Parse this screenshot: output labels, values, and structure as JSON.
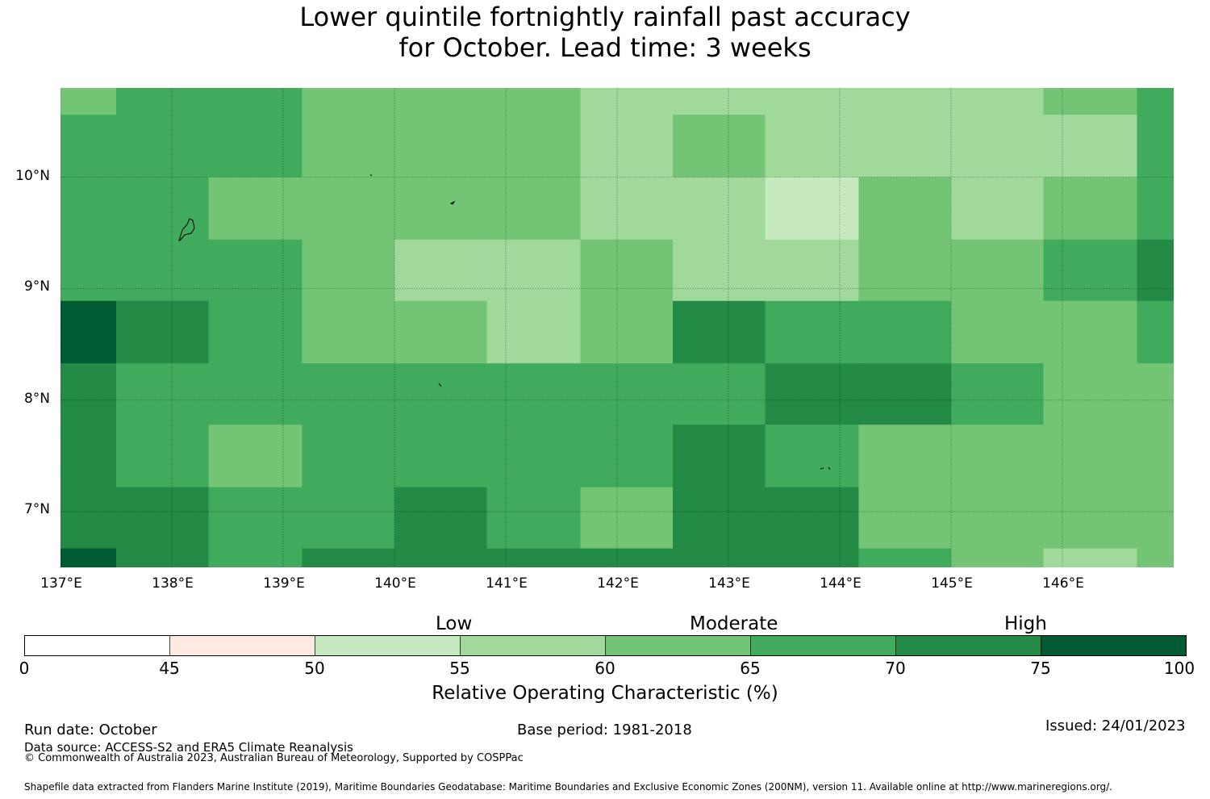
{
  "title": {
    "line1": "Lower quintile fortnightly rainfall past accuracy",
    "line2": "for October. Lead time: 3 weeks"
  },
  "chart_data": {
    "type": "heatmap",
    "metric": "Relative Operating Characteristic (%)",
    "lon_range": [
      137.0,
      147.0
    ],
    "lat_range": [
      6.5,
      10.8
    ],
    "x_ticks": [
      "137°E",
      "138°E",
      "139°E",
      "140°E",
      "141°E",
      "142°E",
      "143°E",
      "144°E",
      "145°E",
      "146°E"
    ],
    "x_tick_values": [
      137,
      138,
      139,
      140,
      141,
      142,
      143,
      144,
      145,
      146
    ],
    "y_ticks": [
      "10°N",
      "9°N",
      "8°N",
      "7°N"
    ],
    "y_tick_values": [
      10,
      9,
      8,
      7
    ],
    "col_edges": [
      137.0,
      137.5,
      138.33,
      139.17,
      140.0,
      140.83,
      141.67,
      142.5,
      143.33,
      144.17,
      145.0,
      145.83,
      146.67,
      147.0
    ],
    "row_edges": [
      10.8,
      10.56,
      10.0,
      9.44,
      8.89,
      8.33,
      7.78,
      7.22,
      6.67,
      6.5
    ],
    "grid_classes": [
      [
        4,
        5,
        5,
        4,
        4,
        4,
        3,
        3,
        3,
        3,
        3,
        4,
        5
      ],
      [
        5,
        5,
        5,
        4,
        4,
        4,
        3,
        4,
        3,
        3,
        3,
        3,
        5
      ],
      [
        5,
        5,
        4,
        4,
        4,
        4,
        3,
        3,
        2,
        4,
        3,
        4,
        5
      ],
      [
        5,
        5,
        5,
        4,
        3,
        3,
        4,
        3,
        3,
        4,
        4,
        5,
        6
      ],
      [
        7,
        6,
        5,
        4,
        4,
        3,
        4,
        6,
        5,
        5,
        4,
        4,
        5
      ],
      [
        6,
        5,
        5,
        5,
        5,
        5,
        5,
        5,
        6,
        6,
        5,
        4,
        4
      ],
      [
        6,
        5,
        4,
        5,
        5,
        5,
        5,
        6,
        5,
        4,
        4,
        4,
        4
      ],
      [
        6,
        6,
        5,
        5,
        6,
        5,
        4,
        6,
        6,
        4,
        4,
        4,
        4
      ],
      [
        7,
        6,
        5,
        6,
        6,
        6,
        6,
        6,
        6,
        5,
        4,
        3,
        4
      ]
    ],
    "class_colors": [
      "#ffffff",
      "#fee8e2",
      "#c7e9c0",
      "#a1d99b",
      "#74c476",
      "#41ab5d",
      "#238b45",
      "#005a32"
    ],
    "class_bounds": [
      0,
      45,
      50,
      55,
      60,
      65,
      70,
      75,
      100
    ]
  },
  "colorbar": {
    "ticks": [
      "0",
      "45",
      "50",
      "55",
      "60",
      "65",
      "70",
      "75",
      "100"
    ],
    "category_low": "Low",
    "category_moderate": "Moderate",
    "category_high": "High",
    "label": "Relative Operating Characteristic (%)"
  },
  "footer": {
    "run_date": "Run date: October",
    "base_period": "Base period: 1981-2018",
    "issued": "Issued: 24/01/2023",
    "data_source": "Data source: ACCESS-S2 and ERA5 Climate Reanalysis",
    "copyright": "© Commonwealth of Australia 2023, Australian Bureau of Meteorology, Supported by COSPPac",
    "shapefile": "Shapefile data extracted from Flanders Marine Institute (2019), Maritime Boundaries Geodatabase: Maritime Boundaries and Exclusive Economic Zones (200NM), version 11. Available online at http://www.marineregions.org/."
  }
}
